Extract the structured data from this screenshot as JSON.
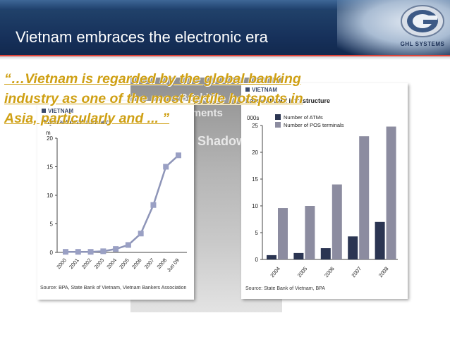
{
  "header": {
    "title": "Vietnam embraces the electronic era",
    "logo_text": "GHL SYSTEMS"
  },
  "background_photo": {
    "words": [
      "Banking",
      "Payments",
      "Shadow"
    ]
  },
  "quote": {
    "text": "“…Vietnam is regarded by the global banking industry as one of the most fertile hotspots in Asia, particularly and ... ”"
  },
  "left_chart": {
    "tag": "VIETNAM",
    "title": "Payment card numbers",
    "unit": "m",
    "source": "Source: BPA, State Bank of Vietnam, Vietnam Bankers Association",
    "colors": {
      "line": "#8e95b8",
      "marker": "#9aa0c4"
    }
  },
  "right_chart": {
    "tag": "VIETNAM",
    "title": "Payment card infrastructure",
    "unit": "000s",
    "source": "Source: State Bank of Vietnam, BPA",
    "colors": {
      "atms": "#2b3552",
      "pos": "#8c8ca0"
    }
  },
  "chart_data": [
    {
      "type": "line",
      "title": "Payment card numbers",
      "ylabel": "m",
      "x": [
        "2000",
        "2001",
        "2002",
        "2003",
        "2004",
        "2005",
        "2006",
        "2007",
        "2008",
        "Jun 09"
      ],
      "y": [
        0.1,
        0.1,
        0.1,
        0.2,
        0.6,
        1.3,
        3.3,
        8.3,
        15.0,
        17.0
      ],
      "ylim": [
        0,
        20
      ],
      "yticks": [
        0,
        5,
        10,
        15,
        20
      ],
      "grid": false
    },
    {
      "type": "bar",
      "title": "Payment card infrastructure",
      "ylabel": "000s",
      "categories": [
        "2004",
        "2005",
        "2006",
        "2007",
        "2008"
      ],
      "series": [
        {
          "name": "Number of ATMs",
          "values": [
            0.8,
            1.2,
            2.1,
            4.3,
            7.0
          ]
        },
        {
          "name": "Number of POS terminals",
          "values": [
            9.6,
            10.0,
            14.0,
            23.0,
            24.8
          ]
        }
      ],
      "ylim": [
        0,
        25
      ],
      "yticks": [
        0,
        5,
        10,
        15,
        20,
        25
      ],
      "legend": "top-left",
      "grid": false
    }
  ]
}
